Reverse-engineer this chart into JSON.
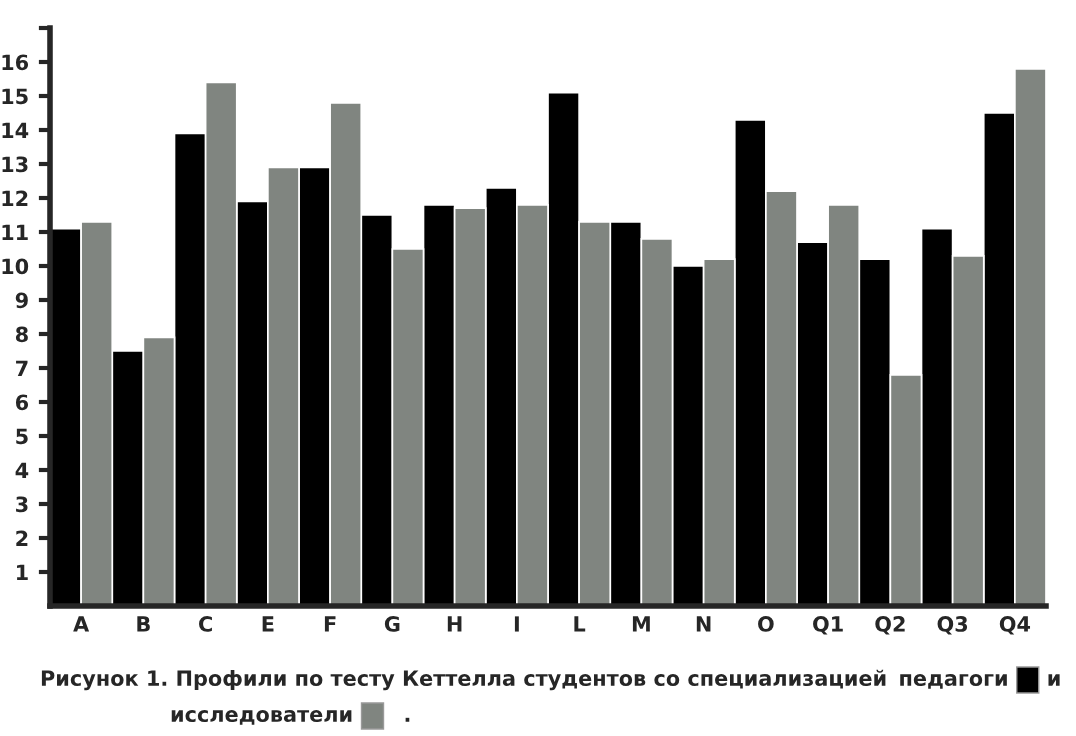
{
  "chart_data": {
    "type": "bar",
    "categories": [
      "A",
      "B",
      "C",
      "E",
      "F",
      "G",
      "H",
      "I",
      "L",
      "M",
      "N",
      "O",
      "Q1",
      "Q2",
      "Q3",
      "Q4"
    ],
    "series": [
      {
        "name": "педагоги",
        "color": "#000000",
        "values": [
          11.1,
          7.5,
          13.9,
          11.9,
          12.9,
          11.5,
          11.8,
          12.3,
          15.1,
          11.3,
          10.0,
          14.3,
          10.7,
          10.2,
          11.1,
          14.5
        ]
      },
      {
        "name": "исследователи",
        "color": "#808580",
        "values": [
          11.3,
          7.9,
          15.4,
          12.9,
          14.8,
          10.5,
          11.7,
          11.8,
          11.3,
          10.8,
          10.2,
          12.2,
          11.8,
          6.8,
          10.3,
          15.8
        ]
      }
    ],
    "ylim": [
      0,
      17
    ],
    "yticks": [
      1,
      2,
      3,
      4,
      5,
      6,
      7,
      8,
      9,
      10,
      11,
      12,
      13,
      14,
      15,
      16,
      {
        "value": 17,
        "label": null
      }
    ],
    "annotations": [
      "Рисунок 1. Профили по тесту Кеттелла студентов со специализацией",
      "и",
      "."
    ],
    "legend": "bottom",
    "grid": false
  }
}
